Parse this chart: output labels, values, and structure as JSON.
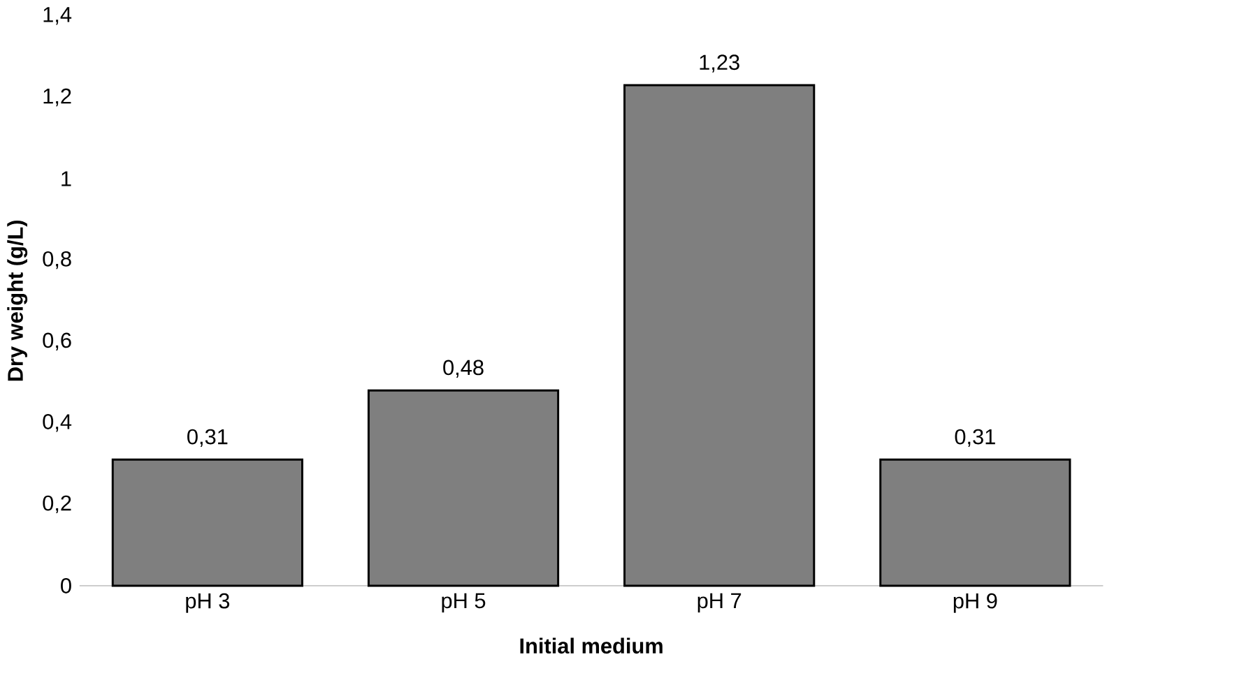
{
  "chart_data": {
    "type": "bar",
    "xlabel": "Initial medium",
    "ylabel": "Dry weight (g/L)",
    "categories": [
      "pH 3",
      "pH 5",
      "pH 7",
      "pH 9"
    ],
    "values": [
      0.31,
      0.48,
      1.23,
      0.31
    ],
    "value_labels": [
      "0,31",
      "0,48",
      "1,23",
      "0,31"
    ],
    "color": "#7f7f7f",
    "ylim": [
      0,
      1.4
    ],
    "yticks": [
      0,
      {
        "value": 0.2,
        "label": "0,2"
      },
      {
        "value": 0.4,
        "label": "0,4"
      },
      {
        "value": 0.6,
        "label": "0,6"
      },
      {
        "value": 0.8,
        "label": "0,8"
      },
      1,
      {
        "value": 1.2,
        "label": "1,2"
      },
      {
        "value": 1.4,
        "label": "1,4"
      }
    ]
  }
}
